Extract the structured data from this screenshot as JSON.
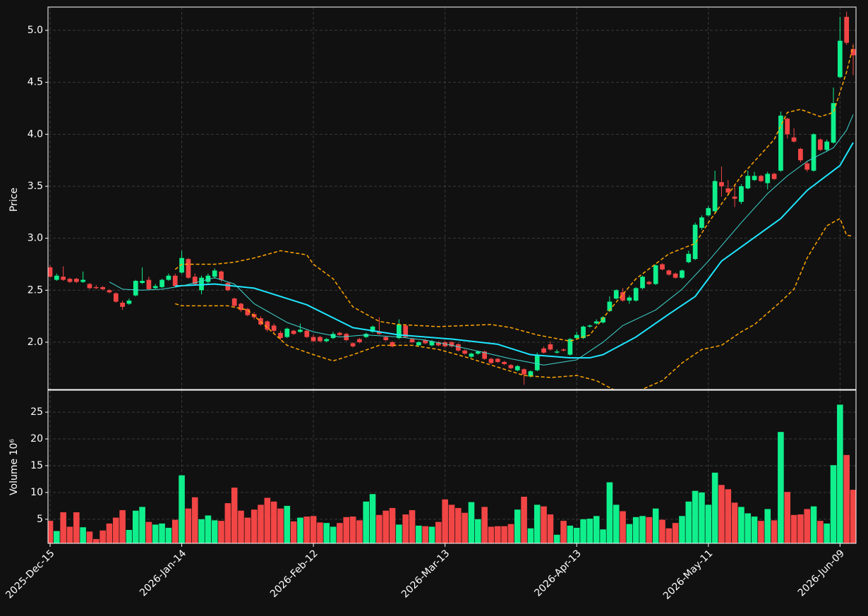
{
  "chart_data": [
    {
      "type": "candlestick",
      "ylabel": "Price",
      "categories": [
        "2025-Dec-15",
        null,
        null,
        null,
        null,
        null,
        null,
        null,
        null,
        null,
        null,
        null,
        null,
        null,
        null,
        null,
        null,
        null,
        null,
        null,
        "2026-Jan-14",
        null,
        null,
        null,
        null,
        null,
        null,
        null,
        null,
        null,
        null,
        null,
        null,
        null,
        null,
        null,
        null,
        null,
        null,
        null,
        "2026-Feb-12",
        null,
        null,
        null,
        null,
        null,
        null,
        null,
        null,
        null,
        null,
        null,
        null,
        null,
        null,
        null,
        null,
        null,
        null,
        null,
        "2026-Mar-13",
        null,
        null,
        null,
        null,
        null,
        null,
        null,
        null,
        null,
        null,
        null,
        null,
        null,
        null,
        null,
        null,
        null,
        null,
        null,
        "2026-Apr-13",
        null,
        null,
        null,
        null,
        null,
        null,
        null,
        null,
        null,
        null,
        null,
        null,
        null,
        null,
        null,
        null,
        null,
        null,
        null,
        "2026-May-11",
        null,
        null,
        null,
        null,
        null,
        null,
        null,
        null,
        null,
        null,
        null,
        null,
        null,
        null,
        null,
        null,
        null,
        null,
        null,
        "2026-Jun-09",
        null,
        null
      ],
      "open": [
        2.72,
        2.6,
        2.63,
        2.61,
        2.61,
        2.58,
        2.56,
        2.53,
        2.53,
        2.5,
        2.47,
        2.38,
        2.37,
        2.45,
        2.57,
        2.6,
        2.52,
        2.53,
        2.6,
        2.64,
        2.67,
        2.8,
        2.63,
        2.5,
        2.58,
        2.63,
        2.68,
        2.57,
        2.42,
        2.37,
        2.32,
        2.27,
        2.23,
        2.2,
        2.16,
        2.09,
        2.05,
        2.11,
        2.1,
        2.11,
        2.05,
        2.05,
        2.01,
        2.04,
        2.09,
        2.08,
        1.99,
        2.03,
        2.05,
        2.1,
        2.1,
        2.05,
        2.0,
        2.04,
        2.16,
        2.03,
        1.97,
        2.02,
        1.97,
        2.0,
        2.0,
        2.0,
        1.98,
        1.92,
        1.86,
        1.89,
        1.91,
        1.84,
        1.84,
        1.81,
        1.78,
        1.73,
        1.74,
        1.67,
        1.73,
        1.94,
        1.98,
        1.9,
        1.93,
        1.88,
        2.04,
        2.04,
        2.15,
        2.18,
        2.19,
        2.3,
        2.42,
        2.48,
        2.4,
        2.4,
        2.52,
        2.58,
        2.56,
        2.75,
        2.69,
        2.66,
        2.62,
        2.77,
        2.8,
        3.1,
        3.22,
        3.26,
        3.54,
        3.48,
        3.4,
        3.35,
        3.48,
        3.56,
        3.6,
        3.53,
        3.62,
        3.65,
        4.15,
        3.97,
        3.86,
        3.72,
        3.65,
        3.95,
        3.85,
        3.92,
        4.55,
        5.13,
        4.82
      ],
      "high": [
        2.74,
        2.66,
        2.73,
        2.62,
        2.62,
        2.68,
        2.57,
        2.55,
        2.54,
        2.51,
        2.48,
        2.4,
        2.42,
        2.6,
        2.72,
        2.63,
        2.56,
        2.61,
        2.66,
        2.66,
        2.88,
        2.81,
        2.66,
        2.64,
        2.66,
        2.71,
        2.69,
        2.58,
        2.43,
        2.38,
        2.33,
        2.29,
        2.25,
        2.21,
        2.18,
        2.11,
        2.14,
        2.12,
        2.18,
        2.12,
        2.07,
        2.06,
        2.04,
        2.1,
        2.1,
        2.09,
        2.0,
        2.04,
        2.09,
        2.16,
        2.24,
        2.06,
        2.01,
        2.22,
        2.17,
        2.04,
        2.01,
        2.03,
        2.02,
        2.01,
        2.01,
        2.01,
        1.99,
        1.93,
        1.9,
        1.92,
        1.92,
        1.85,
        1.85,
        1.82,
        1.79,
        1.78,
        1.75,
        1.73,
        1.9,
        1.96,
        2.01,
        1.93,
        1.94,
        2.04,
        2.1,
        2.16,
        2.17,
        2.22,
        2.25,
        2.44,
        2.51,
        2.52,
        2.45,
        2.53,
        2.64,
        2.59,
        2.75,
        2.76,
        2.7,
        2.67,
        2.7,
        2.88,
        3.15,
        3.22,
        3.31,
        3.65,
        3.69,
        3.56,
        3.52,
        3.52,
        3.65,
        3.64,
        3.61,
        3.64,
        3.63,
        4.22,
        4.16,
        4.06,
        3.87,
        3.74,
        4.01,
        3.96,
        3.95,
        4.45,
        5.13,
        5.18,
        4.87
      ],
      "low": [
        2.62,
        2.59,
        2.59,
        2.57,
        2.57,
        2.57,
        2.51,
        2.51,
        2.5,
        2.47,
        2.38,
        2.31,
        2.36,
        2.44,
        2.56,
        2.5,
        2.51,
        2.52,
        2.59,
        2.53,
        2.66,
        2.61,
        2.55,
        2.46,
        2.55,
        2.61,
        2.58,
        2.49,
        2.33,
        2.29,
        2.25,
        2.22,
        2.16,
        2.1,
        2.09,
        2.02,
        2.04,
        2.07,
        2.09,
        2.04,
        2.0,
        2.0,
        2.0,
        2.03,
        2.06,
        2.01,
        1.95,
        1.99,
        2.04,
        2.09,
        2.07,
        2.01,
        1.95,
        2.03,
        2.04,
        1.99,
        1.96,
        1.98,
        1.96,
        1.96,
        1.95,
        1.95,
        1.91,
        1.88,
        1.85,
        1.88,
        1.83,
        1.79,
        1.8,
        1.78,
        1.74,
        1.72,
        1.59,
        1.66,
        1.72,
        1.89,
        1.92,
        1.89,
        1.91,
        1.87,
        2.03,
        2.03,
        2.14,
        2.17,
        2.18,
        2.29,
        2.41,
        2.39,
        2.37,
        2.39,
        2.51,
        2.55,
        2.55,
        2.69,
        2.64,
        2.61,
        2.61,
        2.76,
        2.79,
        3.08,
        3.21,
        3.25,
        3.4,
        3.42,
        3.3,
        3.33,
        3.47,
        3.55,
        3.54,
        3.47,
        3.56,
        3.64,
        3.96,
        3.92,
        3.73,
        3.64,
        3.64,
        3.84,
        3.83,
        3.91,
        4.54,
        4.86,
        4.57
      ],
      "close": [
        2.63,
        2.64,
        2.6,
        2.58,
        2.58,
        2.6,
        2.52,
        2.52,
        2.51,
        2.48,
        2.39,
        2.34,
        2.4,
        2.59,
        2.59,
        2.51,
        2.54,
        2.6,
        2.64,
        2.54,
        2.81,
        2.62,
        2.56,
        2.62,
        2.64,
        2.69,
        2.6,
        2.5,
        2.35,
        2.31,
        2.26,
        2.24,
        2.17,
        2.12,
        2.11,
        2.04,
        2.13,
        2.08,
        2.12,
        2.05,
        2.01,
        2.01,
        2.03,
        2.08,
        2.07,
        2.02,
        1.96,
        2.0,
        2.08,
        2.15,
        2.08,
        2.02,
        1.96,
        2.17,
        2.05,
        2.0,
        2.0,
        1.99,
        2.01,
        1.97,
        1.96,
        1.96,
        1.92,
        1.89,
        1.89,
        1.91,
        1.84,
        1.8,
        1.81,
        1.79,
        1.75,
        1.77,
        1.69,
        1.72,
        1.87,
        1.9,
        1.93,
        1.91,
        1.92,
        2.03,
        2.07,
        2.15,
        2.16,
        2.2,
        2.24,
        2.39,
        2.5,
        2.4,
        2.43,
        2.52,
        2.63,
        2.56,
        2.74,
        2.7,
        2.65,
        2.62,
        2.69,
        2.85,
        3.13,
        3.2,
        3.29,
        3.55,
        3.5,
        3.44,
        3.38,
        3.5,
        3.6,
        3.6,
        3.55,
        3.62,
        3.57,
        4.18,
        4.0,
        3.93,
        3.75,
        3.66,
        4.0,
        3.85,
        3.93,
        4.3,
        4.9,
        4.88,
        4.76
      ],
      "up_color": "#0ff08c",
      "down_color": "#f24545",
      "overlays": [
        {
          "color": "#1ee6ff",
          "width": 2,
          "style": "solid",
          "x": [
            19,
            25,
            31,
            39,
            46,
            53,
            61,
            68,
            73,
            79,
            82,
            84,
            89,
            94,
            98,
            100,
            102,
            111,
            115,
            120,
            122
          ],
          "values": [
            2.54,
            2.56,
            2.52,
            2.36,
            2.14,
            2.07,
            2.03,
            1.98,
            1.88,
            1.85,
            1.85,
            1.88,
            2.05,
            2.27,
            2.44,
            2.61,
            2.78,
            3.19,
            3.46,
            3.7,
            3.92
          ]
        },
        {
          "color": "#3fd6d0",
          "width": 1,
          "style": "solid",
          "x": [
            9,
            11,
            14,
            17,
            20,
            25,
            28,
            31,
            36,
            40,
            44,
            48,
            53,
            57,
            61,
            66,
            70,
            75,
            80,
            84,
            87,
            92,
            96,
            100,
            105,
            109,
            112,
            115,
            119,
            121,
            122
          ],
          "values": [
            2.58,
            2.51,
            2.5,
            2.51,
            2.54,
            2.62,
            2.56,
            2.37,
            2.19,
            2.1,
            2.05,
            2.07,
            2.05,
            2.02,
            1.97,
            1.9,
            1.84,
            1.78,
            1.83,
            2.0,
            2.16,
            2.31,
            2.51,
            2.78,
            3.15,
            3.43,
            3.6,
            3.74,
            3.87,
            4.04,
            4.19
          ]
        },
        {
          "color": "#ffa500",
          "width": 1.5,
          "style": "dashed",
          "x": [
            19,
            20,
            25,
            28,
            31,
            35,
            39,
            40,
            43,
            46,
            50,
            53,
            59,
            67,
            70,
            74,
            79,
            82,
            85,
            89,
            94,
            98,
            100,
            105,
            109,
            110,
            112,
            114,
            117,
            119,
            121,
            122
          ],
          "values": [
            2.7,
            2.75,
            2.75,
            2.77,
            2.81,
            2.88,
            2.84,
            2.75,
            2.61,
            2.34,
            2.2,
            2.17,
            2.15,
            2.17,
            2.14,
            2.07,
            2.01,
            2.07,
            2.31,
            2.61,
            2.85,
            2.95,
            3.15,
            3.6,
            3.88,
            3.95,
            4.21,
            4.24,
            4.17,
            4.21,
            4.6,
            4.85
          ]
        },
        {
          "color": "#ffa500",
          "width": 1.5,
          "style": "dashed",
          "x": [
            19,
            20,
            27,
            30,
            33,
            36,
            40,
            43,
            46,
            50,
            55,
            59,
            63,
            68,
            72,
            76,
            80,
            83,
            86,
            89,
            93,
            96,
            99,
            102,
            105,
            107,
            111,
            113,
            115,
            118,
            120,
            121,
            122
          ],
          "values": [
            2.37,
            2.35,
            2.35,
            2.31,
            2.14,
            1.97,
            1.88,
            1.82,
            1.88,
            1.97,
            1.97,
            1.93,
            1.86,
            1.76,
            1.68,
            1.66,
            1.68,
            1.63,
            1.53,
            1.52,
            1.63,
            1.8,
            1.93,
            1.97,
            2.1,
            2.17,
            2.39,
            2.51,
            2.81,
            3.12,
            3.19,
            3.03,
            3.02
          ]
        }
      ],
      "ylim": [
        1.545,
        5.224
      ],
      "yticks": [
        {
          "value": 2,
          "label": "2.0"
        },
        {
          "value": 2.5,
          "label": "2.5"
        },
        {
          "value": 3,
          "label": "3.0"
        },
        {
          "value": 3.5,
          "label": "3.5"
        },
        {
          "value": 4,
          "label": "4.0"
        },
        {
          "value": 4.5,
          "label": "4.5"
        },
        {
          "value": 5,
          "label": "5.0"
        }
      ],
      "grid": true
    },
    {
      "type": "bar",
      "ylabel": "Volume  10⁶",
      "values": [
        4.7,
        2.8,
        6.3,
        3.6,
        6.3,
        3.5,
        2.7,
        1.3,
        2.9,
        4.2,
        5.3,
        6.7,
        3.0,
        6.6,
        7.3,
        4.5,
        4.0,
        4.2,
        3.4,
        4.9,
        13.2,
        7.0,
        9.1,
        5.0,
        5.7,
        4.8,
        4.7,
        8.0,
        10.9,
        6.6,
        5.3,
        6.8,
        7.7,
        9.0,
        8.3,
        7.0,
        7.5,
        4.6,
        5.3,
        5.5,
        5.6,
        4.4,
        4.3,
        3.6,
        4.3,
        5.4,
        5.5,
        4.8,
        8.3,
        9.7,
        5.8,
        6.6,
        7.1,
        4.0,
        5.9,
        6.7,
        3.8,
        3.7,
        3.6,
        4.5,
        8.7,
        7.7,
        7.1,
        6.2,
        8.2,
        5.0,
        7.3,
        3.6,
        3.7,
        3.7,
        4.1,
        6.8,
        9.2,
        3.3,
        7.7,
        7.4,
        5.9,
        2.1,
        4.7,
        3.8,
        3.4,
        5.0,
        5.1,
        5.6,
        3.1,
        11.9,
        7.7,
        6.5,
        4.1,
        5.4,
        5.6,
        5.4,
        7.0,
        4.9,
        3.3,
        4.3,
        5.6,
        8.3,
        10.3,
        10.0,
        7.7,
        13.7,
        11.4,
        10.6,
        8.1,
        7.3,
        6.1,
        5.5,
        4.7,
        6.9,
        4.8,
        21.3,
        10.1,
        5.8,
        5.9,
        6.9,
        7.4,
        4.7,
        4.2,
        15.1,
        26.4,
        17.0,
        10.5
      ],
      "ylim": [
        0.5,
        29.1
      ],
      "yticks": [
        5,
        10,
        15,
        20,
        25
      ],
      "grid": true
    }
  ]
}
